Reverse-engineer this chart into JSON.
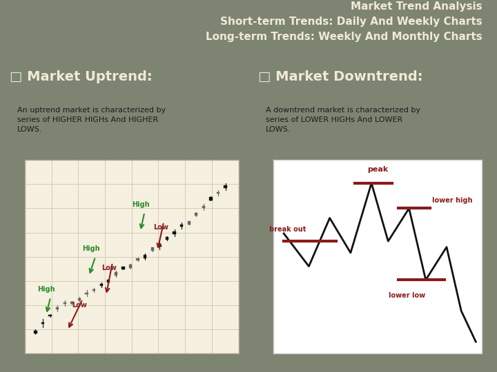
{
  "bg_color": "#7d8572",
  "title_lines": [
    "Market Trend Analysis",
    "Short-term Trends: Daily And Weekly Charts",
    "Long-term Trends: Weekly And Monthly Charts"
  ],
  "title_color": "#f0ead6",
  "title_fontsize": 11,
  "left_heading": "□ Market Uptrend:",
  "right_heading": "□ Market Downtrend:",
  "heading_color": "#f0ead6",
  "heading_fontsize": 14,
  "left_body": "An uptrend market is characterized by\nseries of HIGHER HIGHs And HIGHER\nLOWS.",
  "right_body": "A downtrend market is characterized by\nseries of LOWER HIGHs And LOWER\nLOWS.",
  "body_color": "#1a1a1a",
  "body_fontsize": 8,
  "panel_bg": "#f5f0e0",
  "right_panel_bg": "#ffffff",
  "uptrend_highs_color": "#2a8a2a",
  "uptrend_lows_color": "#8b1a1a",
  "downtrend_color": "#8b1a1a",
  "downtrend_line_color": "#111111",
  "grid_color": "#c8c0a0"
}
